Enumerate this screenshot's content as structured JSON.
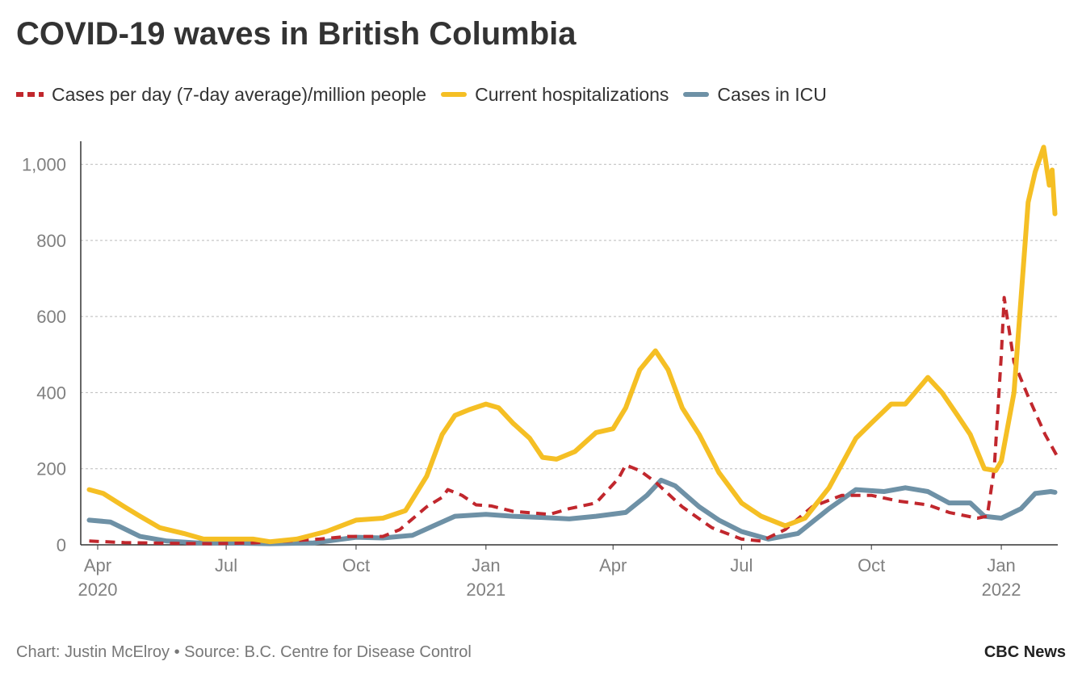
{
  "chart_data": {
    "type": "line",
    "title": "COVID-19 waves in British Columbia",
    "source": "Chart: Justin McElroy • Source: B.C. Centre for Disease Control",
    "brand": "CBC News",
    "xlabel": "",
    "ylabel": "",
    "x_range": [
      "2020-03-20",
      "2022-02-10"
    ],
    "ylim": [
      0,
      1050
    ],
    "y_ticks": [
      {
        "value": 0,
        "label": "0"
      },
      {
        "value": 200,
        "label": "200"
      },
      {
        "value": 400,
        "label": "400"
      },
      {
        "value": 600,
        "label": "600"
      },
      {
        "value": 800,
        "label": "800"
      },
      {
        "value": 1000,
        "label": "1,000"
      }
    ],
    "x_ticks": [
      {
        "date": "2020-04-01",
        "label": "Apr",
        "year": "2020"
      },
      {
        "date": "2020-07-01",
        "label": "Jul",
        "year": ""
      },
      {
        "date": "2020-10-01",
        "label": "Oct",
        "year": ""
      },
      {
        "date": "2021-01-01",
        "label": "Jan",
        "year": "2021"
      },
      {
        "date": "2021-04-01",
        "label": "Apr",
        "year": ""
      },
      {
        "date": "2021-07-01",
        "label": "Jul",
        "year": ""
      },
      {
        "date": "2021-10-01",
        "label": "Oct",
        "year": ""
      },
      {
        "date": "2022-01-01",
        "label": "Jan",
        "year": "2022"
      }
    ],
    "grid": true,
    "legend_position": "top-left",
    "series": [
      {
        "name": "Cases per day (7-day average)/million people",
        "color": "#c1272d",
        "style": "dashed",
        "points": [
          [
            "2020-03-26",
            10
          ],
          [
            "2020-04-20",
            6
          ],
          [
            "2020-05-20",
            4
          ],
          [
            "2020-06-20",
            3
          ],
          [
            "2020-07-20",
            5
          ],
          [
            "2020-08-15",
            10
          ],
          [
            "2020-09-05",
            15
          ],
          [
            "2020-09-25",
            22
          ],
          [
            "2020-10-20",
            22
          ],
          [
            "2020-11-01",
            40
          ],
          [
            "2020-11-20",
            100
          ],
          [
            "2020-12-01",
            125
          ],
          [
            "2020-12-05",
            145
          ],
          [
            "2020-12-15",
            130
          ],
          [
            "2020-12-25",
            105
          ],
          [
            "2021-01-05",
            102
          ],
          [
            "2021-01-20",
            88
          ],
          [
            "2021-02-15",
            80
          ],
          [
            "2021-03-01",
            95
          ],
          [
            "2021-03-20",
            110
          ],
          [
            "2021-04-05",
            175
          ],
          [
            "2021-04-10",
            210
          ],
          [
            "2021-04-20",
            195
          ],
          [
            "2021-05-01",
            165
          ],
          [
            "2021-05-20",
            100
          ],
          [
            "2021-06-10",
            45
          ],
          [
            "2021-07-01",
            15
          ],
          [
            "2021-07-15",
            10
          ],
          [
            "2021-08-01",
            40
          ],
          [
            "2021-08-20",
            100
          ],
          [
            "2021-09-10",
            130
          ],
          [
            "2021-10-01",
            130
          ],
          [
            "2021-10-20",
            115
          ],
          [
            "2021-11-10",
            105
          ],
          [
            "2021-11-25",
            85
          ],
          [
            "2021-12-15",
            70
          ],
          [
            "2021-12-22",
            75
          ],
          [
            "2021-12-27",
            200
          ],
          [
            "2022-01-01",
            500
          ],
          [
            "2022-01-03",
            650
          ],
          [
            "2022-01-10",
            480
          ],
          [
            "2022-01-20",
            390
          ],
          [
            "2022-02-01",
            290
          ],
          [
            "2022-02-10",
            230
          ]
        ]
      },
      {
        "name": "Current hospitalizations",
        "color": "#f5bf24",
        "style": "solid",
        "points": [
          [
            "2020-03-26",
            145
          ],
          [
            "2020-04-05",
            135
          ],
          [
            "2020-04-20",
            100
          ],
          [
            "2020-05-01",
            75
          ],
          [
            "2020-05-15",
            45
          ],
          [
            "2020-06-01",
            30
          ],
          [
            "2020-06-15",
            15
          ],
          [
            "2020-07-01",
            15
          ],
          [
            "2020-07-20",
            15
          ],
          [
            "2020-08-01",
            8
          ],
          [
            "2020-08-20",
            15
          ],
          [
            "2020-09-10",
            35
          ],
          [
            "2020-10-01",
            65
          ],
          [
            "2020-10-20",
            70
          ],
          [
            "2020-11-05",
            90
          ],
          [
            "2020-11-20",
            180
          ],
          [
            "2020-12-01",
            290
          ],
          [
            "2020-12-10",
            340
          ],
          [
            "2020-12-20",
            355
          ],
          [
            "2021-01-01",
            370
          ],
          [
            "2021-01-10",
            360
          ],
          [
            "2021-01-20",
            320
          ],
          [
            "2021-02-01",
            280
          ],
          [
            "2021-02-10",
            230
          ],
          [
            "2021-02-20",
            225
          ],
          [
            "2021-03-05",
            245
          ],
          [
            "2021-03-20",
            295
          ],
          [
            "2021-04-01",
            305
          ],
          [
            "2021-04-10",
            360
          ],
          [
            "2021-04-20",
            460
          ],
          [
            "2021-05-01",
            510
          ],
          [
            "2021-05-10",
            460
          ],
          [
            "2021-05-20",
            360
          ],
          [
            "2021-06-01",
            290
          ],
          [
            "2021-06-15",
            190
          ],
          [
            "2021-07-01",
            110
          ],
          [
            "2021-07-15",
            75
          ],
          [
            "2021-08-01",
            50
          ],
          [
            "2021-08-15",
            70
          ],
          [
            "2021-09-01",
            150
          ],
          [
            "2021-09-20",
            280
          ],
          [
            "2021-10-01",
            320
          ],
          [
            "2021-10-15",
            370
          ],
          [
            "2021-10-25",
            370
          ],
          [
            "2021-11-10",
            440
          ],
          [
            "2021-11-20",
            400
          ],
          [
            "2021-12-01",
            340
          ],
          [
            "2021-12-10",
            290
          ],
          [
            "2021-12-20",
            200
          ],
          [
            "2021-12-28",
            195
          ],
          [
            "2022-01-01",
            220
          ],
          [
            "2022-01-10",
            400
          ],
          [
            "2022-01-16",
            700
          ],
          [
            "2022-01-20",
            900
          ],
          [
            "2022-01-25",
            980
          ],
          [
            "2022-01-31",
            1045
          ],
          [
            "2022-02-04",
            945
          ],
          [
            "2022-02-06",
            985
          ],
          [
            "2022-02-08",
            870
          ]
        ]
      },
      {
        "name": "Cases in ICU",
        "color": "#6e91a6",
        "style": "solid",
        "points": [
          [
            "2020-03-26",
            65
          ],
          [
            "2020-04-10",
            60
          ],
          [
            "2020-05-01",
            22
          ],
          [
            "2020-05-20",
            10
          ],
          [
            "2020-06-10",
            5
          ],
          [
            "2020-07-01",
            5
          ],
          [
            "2020-08-01",
            3
          ],
          [
            "2020-09-01",
            5
          ],
          [
            "2020-10-01",
            20
          ],
          [
            "2020-10-20",
            18
          ],
          [
            "2020-11-10",
            25
          ],
          [
            "2020-11-25",
            50
          ],
          [
            "2020-12-10",
            75
          ],
          [
            "2021-01-01",
            80
          ],
          [
            "2021-01-20",
            75
          ],
          [
            "2021-02-10",
            72
          ],
          [
            "2021-03-01",
            68
          ],
          [
            "2021-03-20",
            75
          ],
          [
            "2021-04-10",
            85
          ],
          [
            "2021-04-25",
            130
          ],
          [
            "2021-05-05",
            170
          ],
          [
            "2021-05-15",
            155
          ],
          [
            "2021-06-01",
            100
          ],
          [
            "2021-06-15",
            65
          ],
          [
            "2021-07-01",
            35
          ],
          [
            "2021-07-20",
            15
          ],
          [
            "2021-08-10",
            30
          ],
          [
            "2021-09-01",
            95
          ],
          [
            "2021-09-20",
            145
          ],
          [
            "2021-10-10",
            140
          ],
          [
            "2021-10-25",
            150
          ],
          [
            "2021-11-10",
            140
          ],
          [
            "2021-11-25",
            110
          ],
          [
            "2021-12-10",
            110
          ],
          [
            "2021-12-20",
            75
          ],
          [
            "2022-01-01",
            70
          ],
          [
            "2022-01-15",
            95
          ],
          [
            "2022-01-25",
            135
          ],
          [
            "2022-02-05",
            140
          ],
          [
            "2022-02-08",
            138
          ]
        ]
      }
    ]
  }
}
